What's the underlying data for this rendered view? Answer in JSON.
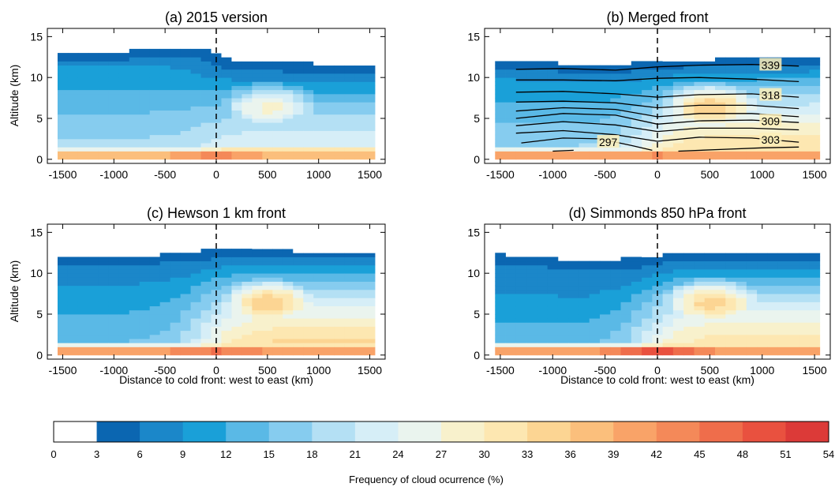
{
  "panels": [
    {
      "title": "(a) 2015 version",
      "ylabel": "Altitude (km)",
      "xlabel": "",
      "chart_data": {
        "type": "heatmap",
        "x": [
          -1500,
          -1000,
          -500,
          0,
          500,
          1000,
          1500
        ],
        "xticks": [
          -1500,
          -1000,
          -500,
          0,
          500,
          1000,
          1500
        ],
        "yticks": [
          0,
          5,
          10,
          15
        ],
        "xlim": [
          -1650,
          1650
        ],
        "ylim": [
          -0.5,
          16
        ],
        "cloud_top_km": [
          12.9,
          12.9,
          13.1,
          13.3,
          13.4,
          13.5,
          13.3,
          13.3
        ],
        "field_profile": {
          "boundary_layer_pct": 36,
          "surface_peak_pct": 43,
          "upper_west_pct": 9,
          "mid_west_pct": 15,
          "mid_east_pct": 24,
          "east_warm_core_pct": 30
        },
        "front_line_x": 0
      }
    },
    {
      "title": "(b) Merged front",
      "ylabel": "",
      "xlabel": "",
      "chart_data": {
        "type": "heatmap",
        "x": [
          -1500,
          -1000,
          -500,
          0,
          500,
          1000,
          1500
        ],
        "xticks": [
          -1500,
          -1000,
          -500,
          0,
          500,
          1000,
          1500
        ],
        "yticks": [
          0,
          5,
          10,
          15
        ],
        "xlim": [
          -1650,
          1650
        ],
        "ylim": [
          -0.5,
          16
        ],
        "cloud_top_km": [
          11.8,
          11.7,
          11.2,
          11.4,
          12.2,
          12.6,
          12.8,
          12.9
        ],
        "field_profile": {
          "boundary_layer_pct": 39,
          "surface_peak_pct": 42,
          "upper_west_pct": 8,
          "mid_west_pct": 14,
          "mid_east_pct": 33,
          "east_warm_core_pct": 38
        },
        "front_line_x": 0,
        "contours": [
          {
            "label": "339",
            "x": [
              -1350,
              -900,
              -400,
              0,
              400,
              900,
              1350
            ],
            "y": [
              11.0,
              11.1,
              10.9,
              11.3,
              11.5,
              11.6,
              11.4
            ]
          },
          {
            "label": "",
            "x": [
              -1350,
              -900,
              -400,
              0,
              400,
              900,
              1350
            ],
            "y": [
              9.7,
              9.7,
              9.6,
              9.9,
              10.0,
              9.8,
              9.5
            ]
          },
          {
            "label": "318",
            "x": [
              -1350,
              -900,
              -400,
              0,
              400,
              900,
              1350
            ],
            "y": [
              8.2,
              8.3,
              8.0,
              7.6,
              7.9,
              8.0,
              7.6
            ]
          },
          {
            "label": "",
            "x": [
              -1350,
              -900,
              -400,
              0,
              400,
              900,
              1350
            ],
            "y": [
              7.0,
              7.1,
              6.9,
              6.3,
              6.6,
              6.6,
              6.2
            ]
          },
          {
            "label": "",
            "x": [
              -1350,
              -900,
              -400,
              0,
              400,
              900,
              1350
            ],
            "y": [
              5.9,
              6.3,
              6.1,
              5.2,
              5.6,
              5.6,
              5.2
            ]
          },
          {
            "label": "309",
            "x": [
              -1350,
              -900,
              -400,
              0,
              400,
              900,
              1350
            ],
            "y": [
              5.0,
              5.6,
              5.4,
              4.3,
              4.7,
              4.8,
              4.5
            ]
          },
          {
            "label": "",
            "x": [
              -1350,
              -900,
              -400,
              0,
              400,
              900,
              1350
            ],
            "y": [
              4.1,
              4.6,
              4.2,
              3.4,
              3.8,
              3.8,
              3.6
            ]
          },
          {
            "label": "303",
            "x": [
              -1350,
              -900,
              -400,
              0,
              400,
              900,
              1350
            ],
            "y": [
              3.2,
              3.5,
              3.0,
              2.2,
              2.7,
              2.6,
              2.1
            ]
          },
          {
            "label": "297",
            "x": [
              -1300,
              -900,
              -550,
              -250,
              -50
            ],
            "y": [
              2.0,
              2.6,
              2.5,
              1.7,
              1.1
            ]
          },
          {
            "label": "",
            "x": [
              -1000,
              -800
            ],
            "y": [
              1.0,
              1.1
            ]
          },
          {
            "label": "",
            "x": [
              200,
              600,
              1000,
              1350
            ],
            "y": [
              1.0,
              1.2,
              1.4,
              1.5
            ]
          }
        ]
      }
    },
    {
      "title": "(c) Hewson 1 km front",
      "ylabel": "Altitude (km)",
      "xlabel": "Distance to cold front: west to east (km)",
      "chart_data": {
        "type": "heatmap",
        "x": [
          -1500,
          -1000,
          -500,
          0,
          500,
          1000,
          1500
        ],
        "xticks": [
          -1500,
          -1000,
          -500,
          0,
          500,
          1000,
          1500
        ],
        "yticks": [
          0,
          5,
          10,
          15
        ],
        "xlim": [
          -1650,
          1650
        ],
        "ylim": [
          -0.5,
          16
        ],
        "cloud_top_km": [
          11.7,
          11.7,
          11.9,
          12.3,
          12.9,
          13.1,
          13.0,
          12.9
        ],
        "field_profile": {
          "boundary_layer_pct": 40,
          "surface_peak_pct": 45,
          "upper_west_pct": 7,
          "mid_west_pct": 11,
          "mid_east_pct": 34,
          "east_warm_core_pct": 38
        },
        "front_line_x": 0
      }
    },
    {
      "title": "(d) Simmonds 850 hPa front",
      "ylabel": "",
      "xlabel": "Distance to cold front: west to east (km)",
      "chart_data": {
        "type": "heatmap",
        "x": [
          -1500,
          -1000,
          -500,
          0,
          500,
          1000,
          1500
        ],
        "xticks": [
          -1500,
          -1000,
          -500,
          0,
          500,
          1000,
          1500
        ],
        "yticks": [
          0,
          5,
          10,
          15
        ],
        "xlim": [
          -1650,
          1650
        ],
        "ylim": [
          -0.5,
          16
        ],
        "cloud_top_km": [
          12.1,
          11.7,
          11.2,
          11.6,
          12.6,
          12.9,
          13.0,
          13.0
        ],
        "field_profile": {
          "boundary_layer_pct": 40,
          "surface_peak_pct": 49,
          "upper_west_pct": 6,
          "mid_west_pct": 10,
          "mid_east_pct": 32,
          "east_warm_core_pct": 37
        },
        "front_line_x": 0
      }
    }
  ],
  "colorbar": {
    "label": "Frequency of cloud ocurrence (%)",
    "ticks": [
      "0",
      "3",
      "6",
      "9",
      "12",
      "15",
      "18",
      "21",
      "24",
      "27",
      "30",
      "33",
      "36",
      "39",
      "42",
      "45",
      "48",
      "51",
      "54"
    ],
    "colors": [
      "#ffffff",
      "#0b66b1",
      "#1b87c9",
      "#1aa0d8",
      "#5ab9e6",
      "#86ccef",
      "#b4e0f4",
      "#d6eef7",
      "#eaf4ee",
      "#f8f1cc",
      "#fde7b1",
      "#fcd593",
      "#fbbf7c",
      "#f9a368",
      "#f48959",
      "#ef6d4b",
      "#e9513f",
      "#dc3a38"
    ]
  }
}
